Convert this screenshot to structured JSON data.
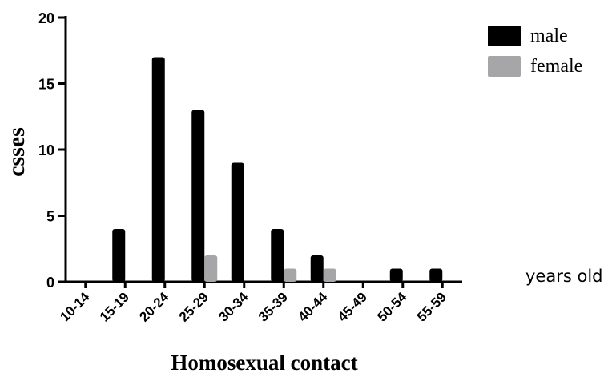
{
  "chart_data": {
    "type": "bar",
    "title": "",
    "xlabel": "Homosexual contact",
    "ylabel": "csses",
    "x_unit_note": "years old",
    "categories": [
      "10-14",
      "15-19",
      "20-24",
      "25-29",
      "30-34",
      "35-39",
      "40-44",
      "45-49",
      "50-54",
      "55-59"
    ],
    "series": [
      {
        "name": "male",
        "color": "#000000",
        "values": [
          0,
          4,
          17,
          13,
          9,
          4,
          2,
          0,
          1,
          1
        ]
      },
      {
        "name": "female",
        "color": "#a6a6a8",
        "values": [
          0,
          0,
          0,
          2,
          0,
          1,
          1,
          0,
          0,
          0
        ]
      }
    ],
    "ylim": [
      0,
      20
    ],
    "yticks": [
      0,
      5,
      10,
      15,
      20
    ],
    "grid": false,
    "legend_position": "top-right"
  }
}
